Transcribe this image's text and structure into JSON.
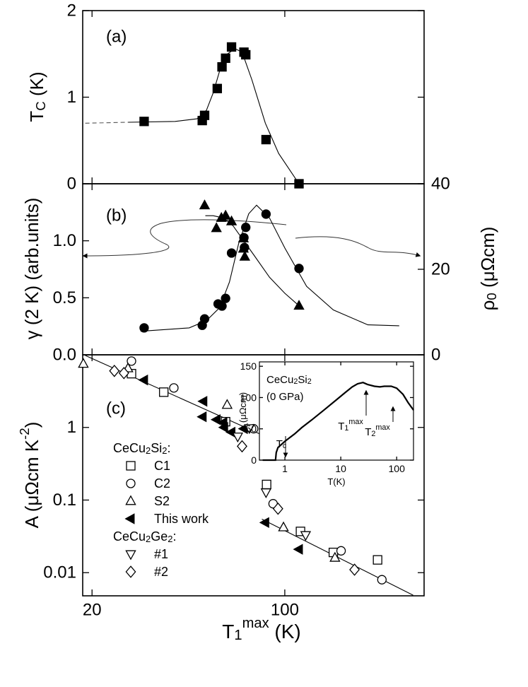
{
  "chart_data": [
    {
      "type": "scatter",
      "panel_label": "(a)",
      "y_label": [
        [
          "T",
          "normal"
        ],
        [
          "C",
          "sub"
        ],
        [
          " (K)",
          "normal"
        ]
      ],
      "xscale": "log",
      "xlim": [
        18.5,
        320
      ],
      "xticks": [
        20,
        100
      ],
      "xtick_labels": false,
      "ylim": [
        0,
        2
      ],
      "yticks": [
        0,
        1,
        2
      ],
      "series": [
        {
          "marker": "square",
          "filled": true,
          "color": "#000000",
          "x": [
            30.9,
            50.2,
            51.2,
            56.9,
            59.2,
            61.0,
            64.1,
            71.1,
            72.2,
            85.5,
            112.6
          ],
          "values": [
            0.72,
            0.73,
            0.79,
            1.1,
            1.35,
            1.45,
            1.58,
            1.52,
            1.49,
            0.51,
            0.0
          ]
        }
      ],
      "fits": [
        {
          "dashed": true,
          "color": "#555555",
          "x": [
            18.9,
            27
          ],
          "values": [
            0.7,
            0.71
          ]
        },
        {
          "dashed": false,
          "color": "#000000",
          "x": [
            27,
            40,
            48,
            52,
            55,
            58,
            62,
            66,
            70,
            76,
            85,
            95,
            112.6
          ],
          "values": [
            0.71,
            0.72,
            0.75,
            0.85,
            1.05,
            1.3,
            1.5,
            1.56,
            1.52,
            1.2,
            0.7,
            0.35,
            0
          ]
        }
      ]
    },
    {
      "type": "scatter",
      "panel_label": "(b)",
      "y_label": [
        [
          "γ (2 K) (arb.units)",
          "normal"
        ]
      ],
      "y2_label": [
        [
          "ρ",
          "normal"
        ],
        [
          "0",
          "sub"
        ],
        [
          " (μΩcm)",
          "normal"
        ]
      ],
      "xscale": "log",
      "xlim": [
        18.5,
        320
      ],
      "xticks": [
        20,
        100
      ],
      "xtick_labels": false,
      "ylim": [
        0,
        1.5
      ],
      "yticks": [
        {
          "value": 0,
          "label": "0.0"
        },
        {
          "value": 0.5,
          "label": "0.5"
        },
        {
          "value": 1,
          "label": "1.0"
        }
      ],
      "y2lim": [
        0,
        40
      ],
      "y2ticks": [
        0,
        20,
        40
      ],
      "series": [
        {
          "marker": "triangle-up",
          "filled": true,
          "color": "#000000",
          "x": [
            51.2,
            56.5,
            58.9,
            61.0,
            64.1,
            70.8,
            70.8,
            71.6,
            112.6
          ],
          "values": [
            1.31,
            1.11,
            1.2,
            1.22,
            1.17,
            1.02,
            0.93,
            0.86,
            0.43
          ]
        },
        {
          "marker": "circle",
          "filled": true,
          "color": "#000000",
          "axis": "y2",
          "x": [
            30.9,
            50.2,
            51.2,
            57.3,
            59.2,
            61.0,
            64.1,
            71.1,
            71.4,
            72.2,
            85.5,
            112.6
          ],
          "values": [
            6.3,
            6.9,
            8.4,
            11.9,
            11.4,
            13.2,
            23.8,
            27.4,
            25.1,
            29.8,
            32.9,
            20.2
          ]
        }
      ],
      "fits": [
        {
          "dashed": false,
          "color": "#000000",
          "x": [
            51.5,
            55,
            60,
            65,
            70,
            77,
            88,
            100,
            112.6
          ],
          "values": [
            1.22,
            1.22,
            1.2,
            1.13,
            1.02,
            0.88,
            0.68,
            0.54,
            0.43
          ]
        },
        {
          "dashed": false,
          "color": "#000000",
          "axis": "y2",
          "x": [
            30,
            45,
            52,
            58,
            63,
            68,
            74,
            79,
            88,
            100,
            120,
            150,
            200,
            260
          ],
          "values": [
            5.5,
            6.3,
            8,
            11,
            17,
            26,
            33,
            35,
            32,
            25,
            16,
            10.5,
            7,
            6.8
          ]
        }
      ]
    },
    {
      "type": "scatter",
      "panel_label": "(c)",
      "y_label": [
        [
          "A (μΩcm K",
          "normal"
        ],
        [
          "-2",
          "sup"
        ],
        [
          ")",
          "normal"
        ]
      ],
      "x_label": [
        [
          "T",
          "normal"
        ],
        [
          "1",
          "sub"
        ],
        [
          "max",
          "sup"
        ],
        [
          " (K)",
          "normal"
        ]
      ],
      "xscale": "log",
      "xlim": [
        18.5,
        320
      ],
      "xticks": [
        20,
        100
      ],
      "xtick_labels": true,
      "yscale": "log",
      "ylim": [
        0.0048,
        10
      ],
      "yticks": [
        0.01,
        0.1,
        1
      ],
      "groups": [
        {
          "title": [
            [
              "CeCu",
              "normal"
            ],
            [
              "2",
              "sub"
            ],
            [
              "Si",
              "normal"
            ],
            [
              "2",
              "sub"
            ],
            [
              ":",
              "normal"
            ]
          ],
          "series": [
            {
              "name": "C1",
              "marker": "square",
              "filled": false,
              "color": "#000000",
              "x": [
                27.8,
                36.4,
                61.0,
                85.9,
                114,
                150,
                217
              ],
              "values": [
                5.5,
                3.06,
                1.2,
                0.164,
                0.037,
                0.019,
                0.015
              ]
            },
            {
              "name": "C2",
              "marker": "circle",
              "filled": false,
              "color": "#000000",
              "x": [
                27.8,
                39.6,
                77.1,
                90.7,
                160,
                225
              ],
              "values": [
                8.2,
                3.5,
                0.96,
                0.089,
                0.02,
                0.008
              ]
            },
            {
              "name": "S2",
              "marker": "triangle-up",
              "filled": false,
              "color": "#000000",
              "x": [
                18.6,
                27.0,
                61.8,
                98.9,
                152
              ],
              "values": [
                7.5,
                6.5,
                2.04,
                0.042,
                0.016
              ]
            },
            {
              "name": "This work",
              "marker": "triangle-left",
              "filled": true,
              "color": "#000000",
              "x": [
                30.9,
                50.7,
                50.4,
                56.6,
                59.9,
                60.3,
                64.1,
                71.1,
                85.0,
                112.6
              ],
              "values": [
                4.5,
                2.29,
                1.4,
                1.28,
                1.17,
                1.0,
                0.86,
                0.96,
                0.049,
                0.021
              ]
            }
          ]
        },
        {
          "title": [
            [
              "CeCu",
              "normal"
            ],
            [
              "2",
              "sub"
            ],
            [
              "Ge",
              "normal"
            ],
            [
              "2",
              "sub"
            ],
            [
              ":",
              "normal"
            ]
          ],
          "series": [
            {
              "name": "#1",
              "marker": "triangle-down",
              "filled": false,
              "color": "#000000",
              "x": [
                67.5,
                74.4,
                85.5,
                119
              ],
              "values": [
                0.75,
                0.98,
                0.128,
                0.033
              ]
            },
            {
              "name": "#2",
              "marker": "diamond",
              "filled": false,
              "color": "#000000",
              "x": [
                24.1,
                26.1,
                70.0,
                94.5,
                179
              ],
              "values": [
                6.0,
                5.6,
                0.55,
                0.076,
                0.011
              ]
            }
          ]
        }
      ],
      "fits": [
        {
          "dashed": false,
          "color": "#000000",
          "x": [
            18.9,
            87.6
          ],
          "values": [
            9.8,
            0.715
          ]
        },
        {
          "dashed": false,
          "color": "#000000",
          "x": [
            82.6,
            292
          ],
          "values": [
            0.0546,
            0.0049
          ]
        }
      ]
    },
    {
      "type": "line",
      "y_label": [
        [
          "ρ (μΩcm)",
          "normal"
        ]
      ],
      "x_label": [
        [
          "T(K)",
          "normal"
        ]
      ],
      "xscale": "log",
      "xlim": [
        0.35,
        200
      ],
      "xticks": [
        1,
        10,
        100
      ],
      "xtick_labels": true,
      "ylim": [
        0,
        157
      ],
      "yticks": [
        0,
        50,
        100,
        150
      ],
      "annotations": [
        [
          [
            "CeCu",
            "normal"
          ],
          [
            "2",
            "sub"
          ],
          [
            "Si",
            "normal"
          ],
          [
            "2",
            "sub"
          ]
        ],
        [
          [
            "(0 GPa)",
            "normal"
          ]
        ],
        [
          [
            "T",
            "normal"
          ],
          [
            "c",
            "sub"
          ]
        ],
        [
          [
            "T",
            "normal"
          ],
          [
            "1",
            "sub"
          ],
          [
            "max",
            "sup"
          ]
        ],
        [
          [
            "T",
            "normal"
          ],
          [
            "2",
            "sub"
          ],
          [
            "max",
            "sup"
          ]
        ]
      ],
      "series": [
        {
          "color": "#000000",
          "x": [
            0.4,
            0.6,
            0.68,
            0.7,
            0.75,
            1,
            1.5,
            2,
            3,
            5,
            8,
            12,
            16,
            20,
            25,
            30,
            40,
            50,
            60,
            80,
            100,
            130,
            160,
            200
          ],
          "values": [
            0,
            0,
            0,
            12,
            20,
            30,
            42,
            52,
            64,
            80,
            95,
            108,
            117,
            122,
            124,
            121,
            118,
            117,
            118,
            118,
            115,
            105,
            92,
            80
          ]
        }
      ]
    }
  ]
}
